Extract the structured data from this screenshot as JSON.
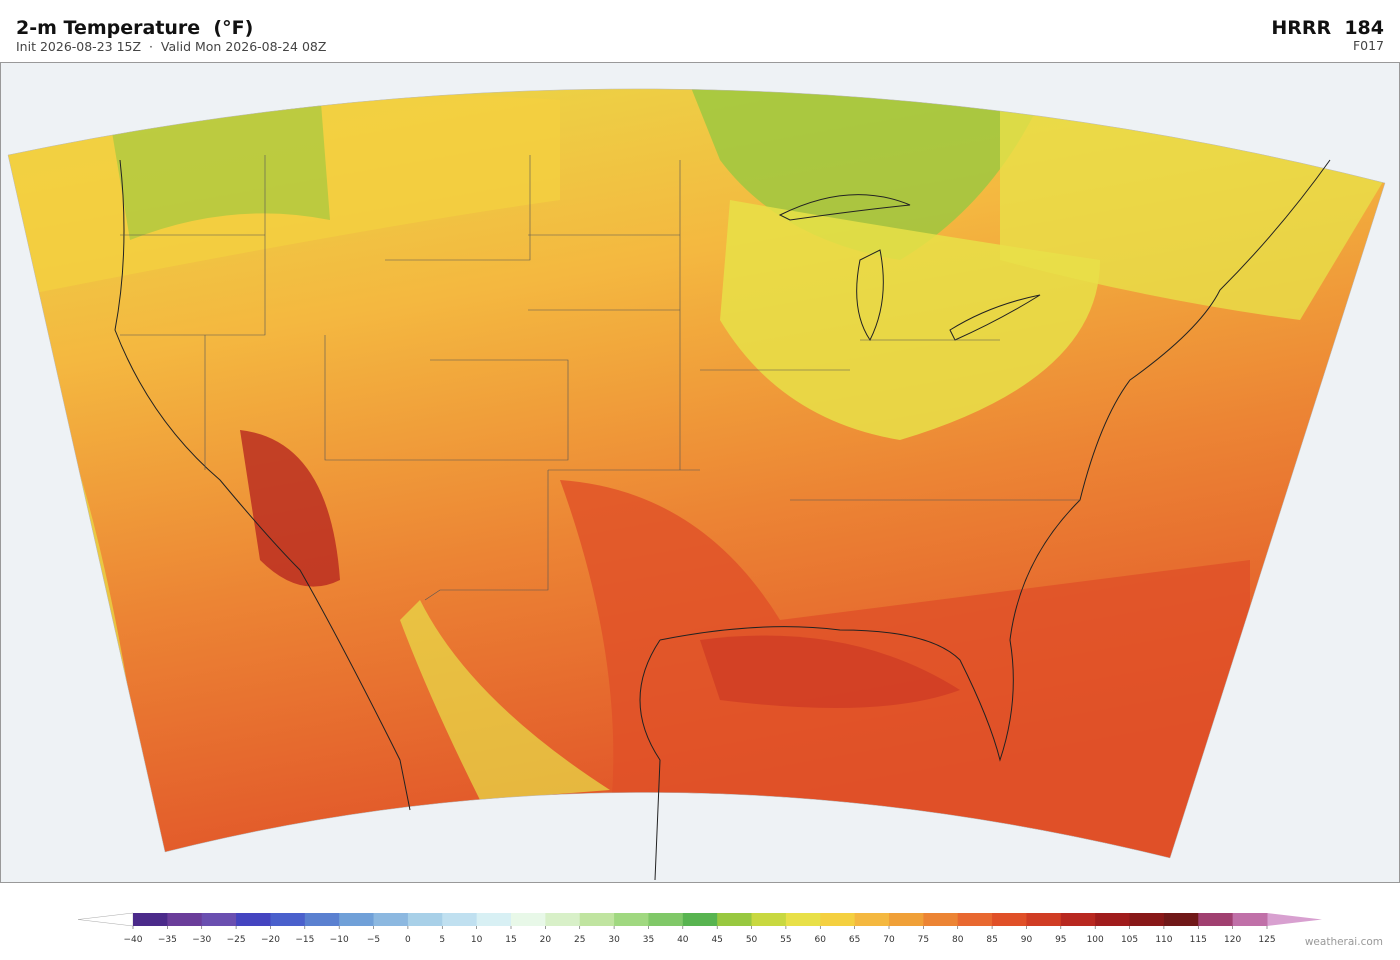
{
  "header": {
    "title": "2-m Temperature  (°F)",
    "subtitle": "Init 2026-08-23 15Z  ·  Valid Mon 2026-08-24 08Z",
    "model": "HRRR  184",
    "forecast_hour": "F017"
  },
  "colorbar": {
    "ticks": [
      {
        "value": -40,
        "label": "−40"
      },
      {
        "value": -35,
        "label": "−35"
      },
      {
        "value": -30,
        "label": "−30"
      },
      {
        "value": -25,
        "label": "−25"
      },
      {
        "value": -20,
        "label": "−20"
      },
      {
        "value": -15,
        "label": "−15"
      },
      {
        "value": -10,
        "label": "−10"
      },
      {
        "value": -5,
        "label": "−5"
      },
      0,
      5,
      10,
      15,
      20,
      25,
      30,
      35,
      40,
      45,
      50,
      55,
      60,
      65,
      70,
      75,
      80,
      85,
      90,
      95,
      100,
      105,
      110,
      115,
      120,
      125
    ],
    "colors": [
      "#4b2a8a",
      "#6a3d9a",
      "#6a4fb0",
      "#4444c0",
      "#4a60cc",
      "#5a80d0",
      "#70a0d8",
      "#8cb8e0",
      "#a8d0e8",
      "#c0e0f0",
      "#d8f0f4",
      "#e8f8e8",
      "#d8f0c8",
      "#c0e4a0",
      "#a0d880",
      "#80c868",
      "#58b450",
      "#98c840",
      "#c8d840",
      "#e8e048",
      "#f4d040",
      "#f4b840",
      "#f0a038",
      "#ec8434",
      "#e86830",
      "#e05028",
      "#d03c24",
      "#b82820",
      "#a01c1c",
      "#881818",
      "#701818",
      "#a04070",
      "#c070a8"
    ],
    "under_color": "#ffffff",
    "over_color": "#d8a0d0"
  },
  "credit": "weatherai.com"
}
